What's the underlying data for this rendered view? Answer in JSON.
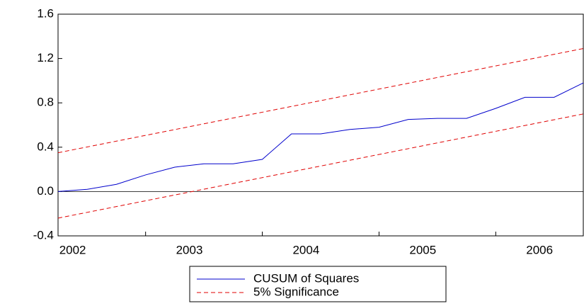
{
  "chart_data": {
    "type": "line",
    "series": [
      {
        "name": "CUSUM of Squares",
        "color": "#0000cc",
        "dash": false,
        "x": [
          2002.25,
          2002.5,
          2002.75,
          2003,
          2003.25,
          2003.5,
          2003.75,
          2004,
          2004.25,
          2004.5,
          2004.75,
          2005,
          2005.25,
          2005.5,
          2005.75,
          2006,
          2006.25,
          2006.5,
          2006.75
        ],
        "values": [
          0.0,
          0.02,
          0.065,
          0.15,
          0.22,
          0.25,
          0.25,
          0.29,
          0.52,
          0.52,
          0.56,
          0.58,
          0.65,
          0.66,
          0.66,
          0.75,
          0.85,
          0.85,
          0.98
        ]
      },
      {
        "name": "5% Significance",
        "color": "#e00000",
        "dash": true,
        "x": [
          2002.25,
          2006.75
        ],
        "values": [
          0.35,
          1.29
        ]
      },
      {
        "color": "#e00000",
        "dash": true,
        "x": [
          2002.25,
          2006.75
        ],
        "values": [
          -0.24,
          0.7
        ]
      }
    ],
    "xlim": [
      2002.25,
      2006.75
    ],
    "xticks": [
      {
        "value": 2002.375,
        "label": "2002"
      },
      {
        "value": 2003.375,
        "label": "2003"
      },
      {
        "value": 2004.375,
        "label": "2004"
      },
      {
        "value": 2005.375,
        "label": "2005"
      },
      {
        "value": 2006.375,
        "label": "2006"
      }
    ],
    "xminorticks": [
      2003,
      2004,
      2005,
      2006
    ],
    "ylim": [
      -0.4,
      1.6
    ],
    "yticks": [
      -0.4,
      {
        "value": 0,
        "label": "0.0"
      },
      0.4,
      0.8,
      1.2,
      1.6
    ],
    "zero_line": true
  }
}
